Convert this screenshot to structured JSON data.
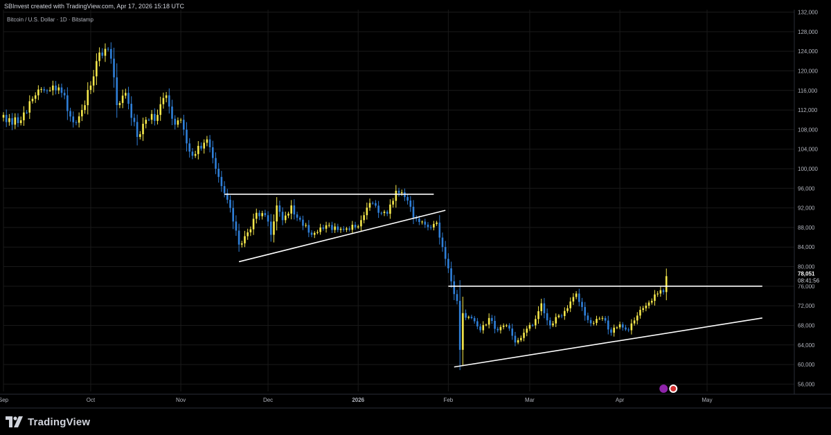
{
  "header": {
    "credit": "SBInvest created with TradingView.com, Apr 17, 2026 15:18 UTC",
    "symbol": "Bitcoin / U.S. Dollar · 1D · Bitstamp"
  },
  "footer": {
    "brand": "TradingView"
  },
  "price_tag": {
    "price": "78,051",
    "countdown": "08:41:56"
  },
  "colors": {
    "up": "#f5e84c",
    "down": "#2f7fd8",
    "background": "#000000",
    "lines": "#ffffff",
    "grid": "#1a1a1a"
  },
  "chart_data": {
    "type": "candlestick",
    "title": "Bitcoin / U.S. Dollar · 1D · Bitstamp",
    "y_axis": {
      "ticks": [
        56000,
        60000,
        64000,
        68000,
        72000,
        76000,
        80000,
        84000,
        88000,
        92000,
        96000,
        100000,
        104000,
        108000,
        112000,
        116000,
        120000,
        124000,
        128000,
        132000
      ],
      "tick_labels": [
        "56,000",
        "60,000",
        "64,000",
        "68,000",
        "72,000",
        "76,000",
        "80,000",
        "84,000",
        "88,000",
        "92,000",
        "96,000",
        "100,000",
        "104,000",
        "108,000",
        "112,000",
        "116,000",
        "120,000",
        "124,000",
        "128,000",
        "132,000"
      ],
      "range": [
        54500,
        132500
      ]
    },
    "x_axis": {
      "range": [
        "2025-09-01",
        "2026-05-31"
      ],
      "ticks": [
        {
          "date": "2025-09-01",
          "label": "Sep"
        },
        {
          "date": "2025-10-01",
          "label": "Oct"
        },
        {
          "date": "2025-11-01",
          "label": "Nov"
        },
        {
          "date": "2025-12-01",
          "label": "Dec"
        },
        {
          "date": "2026-01-01",
          "label": "2026"
        },
        {
          "date": "2026-02-01",
          "label": "Feb"
        },
        {
          "date": "2026-03-01",
          "label": "Mar"
        },
        {
          "date": "2026-04-01",
          "label": "Apr"
        },
        {
          "date": "2026-05-01",
          "label": "May"
        }
      ]
    },
    "anchors": [
      [
        "2025-09-01",
        111000
      ],
      [
        "2025-09-04",
        109000
      ],
      [
        "2025-09-08",
        111500
      ],
      [
        "2025-09-12",
        115000
      ],
      [
        "2025-09-15",
        116000
      ],
      [
        "2025-09-18",
        117000
      ],
      [
        "2025-09-21",
        115500
      ],
      [
        "2025-09-25",
        109500
      ],
      [
        "2025-09-28",
        112000
      ],
      [
        "2025-10-01",
        117000
      ],
      [
        "2025-10-03",
        122000
      ],
      [
        "2025-10-06",
        124500
      ],
      [
        "2025-10-08",
        122500
      ],
      [
        "2025-10-10",
        113000
      ],
      [
        "2025-10-13",
        115500
      ],
      [
        "2025-10-17",
        106500
      ],
      [
        "2025-10-21",
        110000
      ],
      [
        "2025-10-24",
        111000
      ],
      [
        "2025-10-27",
        115000
      ],
      [
        "2025-10-30",
        109000
      ],
      [
        "2025-11-01",
        110000
      ],
      [
        "2025-11-04",
        103500
      ],
      [
        "2025-11-06",
        103000
      ],
      [
        "2025-11-10",
        106000
      ],
      [
        "2025-11-13",
        100000
      ],
      [
        "2025-11-16",
        95000
      ],
      [
        "2025-11-18",
        92000
      ],
      [
        "2025-11-21",
        84500
      ],
      [
        "2025-11-24",
        87000
      ],
      [
        "2025-11-27",
        91000
      ],
      [
        "2025-11-30",
        90500
      ],
      [
        "2025-12-02",
        86500
      ],
      [
        "2025-12-04",
        92500
      ],
      [
        "2025-12-06",
        89500
      ],
      [
        "2025-12-09",
        92500
      ],
      [
        "2025-12-11",
        90000
      ],
      [
        "2025-12-14",
        88500
      ],
      [
        "2025-12-16",
        86500
      ],
      [
        "2025-12-19",
        88000
      ],
      [
        "2025-12-22",
        88500
      ],
      [
        "2025-12-25",
        87500
      ],
      [
        "2025-12-28",
        87800
      ],
      [
        "2025-12-31",
        88000
      ],
      [
        "2026-01-02",
        89500
      ],
      [
        "2026-01-05",
        93000
      ],
      [
        "2026-01-08",
        91000
      ],
      [
        "2026-01-11",
        90800
      ],
      [
        "2026-01-14",
        95500
      ],
      [
        "2026-01-16",
        95200
      ],
      [
        "2026-01-18",
        93500
      ],
      [
        "2026-01-20",
        90000
      ],
      [
        "2026-01-23",
        89200
      ],
      [
        "2026-01-26",
        88000
      ],
      [
        "2026-01-28",
        89000
      ],
      [
        "2026-01-30",
        84000
      ],
      [
        "2026-02-02",
        77000
      ],
      [
        "2026-02-04",
        73000
      ],
      [
        "2026-02-05",
        63000
      ],
      [
        "2026-02-06",
        70500
      ],
      [
        "2026-02-09",
        69500
      ],
      [
        "2026-02-12",
        67000
      ],
      [
        "2026-02-15",
        69500
      ],
      [
        "2026-02-18",
        67000
      ],
      [
        "2026-02-21",
        68000
      ],
      [
        "2026-02-24",
        64500
      ],
      [
        "2026-02-27",
        66500
      ],
      [
        "2026-03-02",
        68000
      ],
      [
        "2026-03-05",
        72500
      ],
      [
        "2026-03-08",
        68000
      ],
      [
        "2026-03-11",
        70000
      ],
      [
        "2026-03-14",
        71500
      ],
      [
        "2026-03-17",
        74500
      ],
      [
        "2026-03-20",
        70000
      ],
      [
        "2026-03-23",
        68500
      ],
      [
        "2026-03-26",
        69500
      ],
      [
        "2026-03-29",
        66500
      ],
      [
        "2026-04-01",
        68200
      ],
      [
        "2026-04-04",
        67000
      ],
      [
        "2026-04-06",
        69000
      ],
      [
        "2026-04-09",
        71500
      ],
      [
        "2026-04-12",
        73000
      ],
      [
        "2026-04-14",
        74500
      ],
      [
        "2026-04-16",
        74800
      ],
      [
        "2026-04-17",
        78051
      ]
    ],
    "last_price": 78051,
    "trendlines": [
      {
        "from": [
          "2025-11-16",
          94800
        ],
        "to": [
          "2026-01-27",
          94800
        ]
      },
      {
        "from": [
          "2025-11-21",
          81000
        ],
        "to": [
          "2026-01-31",
          91500
        ]
      },
      {
        "from": [
          "2026-02-01",
          76000
        ],
        "to": [
          "2026-05-20",
          76000
        ]
      },
      {
        "from": [
          "2026-02-03",
          59500
        ],
        "to": [
          "2026-05-20",
          69500
        ]
      }
    ]
  }
}
